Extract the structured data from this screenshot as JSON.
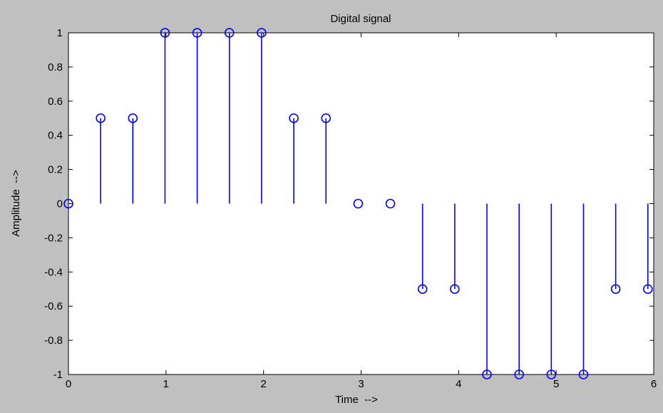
{
  "chart_data": {
    "type": "stem",
    "title": "Digital signal",
    "xlabel": "Time  -->",
    "ylabel": "Amplitude  -->",
    "xlim": [
      0,
      6
    ],
    "ylim": [
      -1,
      1
    ],
    "xticks": [
      0,
      1,
      2,
      3,
      4,
      5,
      6
    ],
    "xtick_labels": [
      "0",
      "1",
      "2",
      "3",
      "4",
      "5",
      "6"
    ],
    "yticks": [
      1,
      0.8,
      0.6,
      0.4,
      0.2,
      0,
      -0.2,
      -0.4,
      -0.6,
      -0.8,
      -1
    ],
    "ytick_labels": [
      "1",
      "0.8",
      "0.6",
      "0.4",
      "0.2",
      "0",
      "-0.2",
      "-0.4",
      "-0.6",
      "-0.8",
      "-1"
    ],
    "grid": false,
    "x": [
      0,
      0.33,
      0.66,
      0.99,
      1.32,
      1.65,
      1.98,
      2.31,
      2.64,
      2.97,
      3.3,
      3.63,
      3.96,
      4.29,
      4.62,
      4.95,
      5.28,
      5.61,
      5.94
    ],
    "y": [
      0,
      0.5,
      0.5,
      1,
      1,
      1,
      1,
      0.5,
      0.5,
      0,
      0,
      -0.5,
      -0.5,
      -1,
      -1,
      -1,
      -1,
      -0.5,
      -0.5
    ],
    "colors": {
      "stem": "#0000ff",
      "background": "#c0c0c0",
      "plot_area": "#ffffff",
      "axes": "#000000"
    }
  }
}
